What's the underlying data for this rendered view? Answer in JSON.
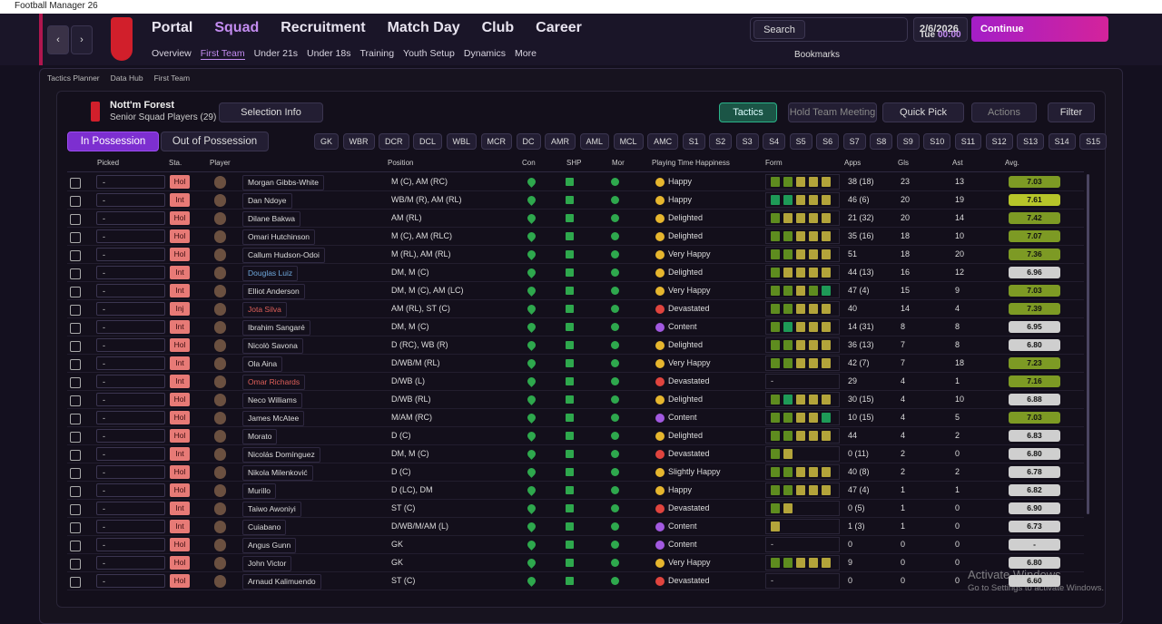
{
  "window": {
    "title": "Football Manager 26"
  },
  "nav": {
    "main": [
      "Portal",
      "Squad",
      "Recruitment",
      "Match Day",
      "Club",
      "Career"
    ],
    "active": 1,
    "sub": [
      "Overview",
      "First Team",
      "Under 21s",
      "Under 18s",
      "Training",
      "Youth Setup",
      "Dynamics",
      "More"
    ],
    "sub_active": 1
  },
  "toolbar": {
    "search": "Search",
    "date": "2/6/2026",
    "day": "Tue",
    "time": "00:00",
    "continue": "Continue",
    "bookmarks": "Bookmarks"
  },
  "breadcrumb": [
    "Tactics Planner",
    "Data Hub",
    "First Team"
  ],
  "team": {
    "name": "Nott'm Forest",
    "subtitle": "Senior Squad Players (29)"
  },
  "buttons": {
    "selection_info": "Selection Info",
    "tactics": "Tactics",
    "meeting": "Hold Team Meeting",
    "quick_pick": "Quick Pick",
    "actions": "Actions",
    "filter": "Filter",
    "in_possession": "In Possession",
    "out_possession": "Out of Possession"
  },
  "positions": [
    "GK",
    "WBR",
    "DCR",
    "DCL",
    "WBL",
    "MCR",
    "DC",
    "AMR",
    "AML",
    "MCL",
    "AMC",
    "S1",
    "S2",
    "S3",
    "S4",
    "S5",
    "S6",
    "S7",
    "S8",
    "S9",
    "S10",
    "S11",
    "S12",
    "S13",
    "S14",
    "S15"
  ],
  "table": {
    "columns": [
      "Picked",
      "Sta.",
      "Player",
      "Position",
      "Con",
      "SHP",
      "Mor",
      "Playing Time Happiness",
      "Form",
      "Apps",
      "Gls",
      "Ast",
      "Avg."
    ],
    "rows": [
      {
        "picked": "-",
        "status": "Hol",
        "player": "Morgan Gibbs-White",
        "position": "M (C), AM (RC)",
        "happiness": "Happy",
        "happiness_color": "#e6b62e",
        "form": [
          "#5e8c1f",
          "#5e8c1f",
          "#b3a43a",
          "#b3a43a",
          "#b3a43a"
        ],
        "apps": "38 (18)",
        "gls": "23",
        "ast": "13",
        "avg": "7.03"
      },
      {
        "picked": "-",
        "status": "Int",
        "player": "Dan Ndoye",
        "position": "WB/M (R), AM (RL)",
        "happiness": "Happy",
        "happiness_color": "#e6b62e",
        "form": [
          "#1e9a57",
          "#1e9a57",
          "#b3a43a",
          "#b3a43a",
          "#b3a43a"
        ],
        "apps": "46 (6)",
        "gls": "20",
        "ast": "19",
        "avg": "7.61"
      },
      {
        "picked": "-",
        "status": "Hol",
        "player": "Dilane Bakwa",
        "position": "AM (RL)",
        "happiness": "Delighted",
        "happiness_color": "#e6b62e",
        "form": [
          "#5e8c1f",
          "#b3a43a",
          "#b3a43a",
          "#b3a43a",
          "#b3a43a"
        ],
        "apps": "21 (32)",
        "gls": "20",
        "ast": "14",
        "avg": "7.42"
      },
      {
        "picked": "-",
        "status": "Hol",
        "player": "Omari Hutchinson",
        "position": "M (C), AM (RLC)",
        "happiness": "Delighted",
        "happiness_color": "#e6b62e",
        "form": [
          "#5e8c1f",
          "#5e8c1f",
          "#b3a43a",
          "#b3a43a",
          "#b3a43a"
        ],
        "apps": "35 (16)",
        "gls": "18",
        "ast": "10",
        "avg": "7.07"
      },
      {
        "picked": "-",
        "status": "Hol",
        "player": "Callum Hudson-Odoi",
        "position": "M (RL), AM (RL)",
        "happiness": "Very Happy",
        "happiness_color": "#e6b62e",
        "form": [
          "#5e8c1f",
          "#5e8c1f",
          "#b3a43a",
          "#b3a43a",
          "#b3a43a"
        ],
        "apps": "51",
        "gls": "18",
        "ast": "20",
        "avg": "7.36"
      },
      {
        "picked": "-",
        "status": "Int",
        "player": "Douglas Luiz",
        "name_color": "#6fa8dc",
        "position": "DM, M (C)",
        "happiness": "Delighted",
        "happiness_color": "#e6b62e",
        "form": [
          "#5e8c1f",
          "#b3a43a",
          "#b3a43a",
          "#b3a43a",
          "#b3a43a"
        ],
        "apps": "44 (13)",
        "gls": "16",
        "ast": "12",
        "avg": "6.96"
      },
      {
        "picked": "-",
        "status": "Int",
        "player": "Elliot Anderson",
        "position": "DM, M (C), AM (LC)",
        "happiness": "Very Happy",
        "happiness_color": "#e6b62e",
        "form": [
          "#5e8c1f",
          "#5e8c1f",
          "#b3a43a",
          "#5e8c1f",
          "#1e9a57"
        ],
        "apps": "47 (4)",
        "gls": "15",
        "ast": "9",
        "avg": "7.03"
      },
      {
        "picked": "-",
        "status": "Inj",
        "player": "Jota Silva",
        "name_color": "#e0605a",
        "position": "AM (RL), ST (C)",
        "happiness": "Devastated",
        "happiness_color": "#e0443e",
        "form": [
          "#5e8c1f",
          "#5e8c1f",
          "#b3a43a",
          "#b3a43a",
          "#b3a43a"
        ],
        "apps": "40",
        "gls": "14",
        "ast": "4",
        "avg": "7.39"
      },
      {
        "picked": "-",
        "status": "Int",
        "player": "Ibrahim Sangaré",
        "position": "DM, M (C)",
        "happiness": "Content",
        "happiness_color": "#a259e0",
        "form": [
          "#5e8c1f",
          "#1e9a57",
          "#b3a43a",
          "#b3a43a",
          "#b3a43a"
        ],
        "apps": "14 (31)",
        "gls": "8",
        "ast": "8",
        "avg": "6.95"
      },
      {
        "picked": "-",
        "status": "Hol",
        "player": "Nicolò Savona",
        "position": "D (RC), WB (R)",
        "happiness": "Delighted",
        "happiness_color": "#e6b62e",
        "form": [
          "#5e8c1f",
          "#5e8c1f",
          "#b3a43a",
          "#b3a43a",
          "#b3a43a"
        ],
        "apps": "36 (13)",
        "gls": "7",
        "ast": "8",
        "avg": "6.80"
      },
      {
        "picked": "-",
        "status": "Int",
        "player": "Ola Aina",
        "position": "D/WB/M (RL)",
        "happiness": "Very Happy",
        "happiness_color": "#e6b62e",
        "form": [
          "#5e8c1f",
          "#5e8c1f",
          "#b3a43a",
          "#b3a43a",
          "#b3a43a"
        ],
        "apps": "42 (7)",
        "gls": "7",
        "ast": "18",
        "avg": "7.23"
      },
      {
        "picked": "-",
        "status": "Int",
        "player": "Omar Richards",
        "name_color": "#e0605a",
        "position": "D/WB (L)",
        "happiness": "Devastated",
        "happiness_color": "#e0443e",
        "form": "-",
        "apps": "29",
        "gls": "4",
        "ast": "1",
        "avg": "7.16"
      },
      {
        "picked": "-",
        "status": "Hol",
        "player": "Neco Williams",
        "position": "D/WB (RL)",
        "happiness": "Delighted",
        "happiness_color": "#e6b62e",
        "form": [
          "#5e8c1f",
          "#1e9a57",
          "#b3a43a",
          "#b3a43a",
          "#b3a43a"
        ],
        "apps": "30 (15)",
        "gls": "4",
        "ast": "10",
        "avg": "6.88"
      },
      {
        "picked": "-",
        "status": "Hol",
        "player": "James McAtee",
        "position": "M/AM (RC)",
        "happiness": "Content",
        "happiness_color": "#a259e0",
        "form": [
          "#5e8c1f",
          "#5e8c1f",
          "#b3a43a",
          "#b3a43a",
          "#1e9a57"
        ],
        "apps": "10 (15)",
        "gls": "4",
        "ast": "5",
        "avg": "7.03"
      },
      {
        "picked": "-",
        "status": "Hol",
        "player": "Morato",
        "position": "D (C)",
        "happiness": "Delighted",
        "happiness_color": "#e6b62e",
        "form": [
          "#5e8c1f",
          "#5e8c1f",
          "#b3a43a",
          "#b3a43a",
          "#b3a43a"
        ],
        "apps": "44",
        "gls": "4",
        "ast": "2",
        "avg": "6.83"
      },
      {
        "picked": "-",
        "status": "Int",
        "player": "Nicolás Domínguez",
        "position": "DM, M (C)",
        "happiness": "Devastated",
        "happiness_color": "#e0443e",
        "form": [
          "#5e8c1f",
          "#b3a43a"
        ],
        "apps": "0 (11)",
        "gls": "2",
        "ast": "0",
        "avg": "6.80"
      },
      {
        "picked": "-",
        "status": "Hol",
        "player": "Nikola Milenković",
        "position": "D (C)",
        "happiness": "Slightly Happy",
        "happiness_color": "#e6b62e",
        "form": [
          "#5e8c1f",
          "#5e8c1f",
          "#b3a43a",
          "#b3a43a",
          "#b3a43a"
        ],
        "apps": "40 (8)",
        "gls": "2",
        "ast": "2",
        "avg": "6.78"
      },
      {
        "picked": "-",
        "status": "Hol",
        "player": "Murillo",
        "position": "D (LC), DM",
        "happiness": "Happy",
        "happiness_color": "#e6b62e",
        "form": [
          "#5e8c1f",
          "#5e8c1f",
          "#b3a43a",
          "#b3a43a",
          "#b3a43a"
        ],
        "apps": "47 (4)",
        "gls": "1",
        "ast": "1",
        "avg": "6.82"
      },
      {
        "picked": "-",
        "status": "Int",
        "player": "Taiwo Awoniyi",
        "position": "ST (C)",
        "happiness": "Devastated",
        "happiness_color": "#e0443e",
        "form": [
          "#5e8c1f",
          "#b3a43a"
        ],
        "apps": "0 (5)",
        "gls": "1",
        "ast": "0",
        "avg": "6.90"
      },
      {
        "picked": "-",
        "status": "Int",
        "player": "Cuiabano",
        "position": "D/WB/M/AM (L)",
        "happiness": "Content",
        "happiness_color": "#a259e0",
        "form": [
          "#b3a43a"
        ],
        "apps": "1 (3)",
        "gls": "1",
        "ast": "0",
        "avg": "6.73"
      },
      {
        "picked": "-",
        "status": "Hol",
        "player": "Angus Gunn",
        "position": "GK",
        "happiness": "Content",
        "happiness_color": "#a259e0",
        "form": "-",
        "apps": "0",
        "gls": "0",
        "ast": "0",
        "avg": "-"
      },
      {
        "picked": "-",
        "status": "Hol",
        "player": "John Victor",
        "position": "GK",
        "happiness": "Very Happy",
        "happiness_color": "#e6b62e",
        "form": [
          "#5e8c1f",
          "#5e8c1f",
          "#b3a43a",
          "#b3a43a",
          "#b3a43a"
        ],
        "apps": "9",
        "gls": "0",
        "ast": "0",
        "avg": "6.80"
      },
      {
        "picked": "-",
        "status": "Hol",
        "player": "Arnaud Kalimuendo",
        "position": "ST (C)",
        "happiness": "Devastated",
        "happiness_color": "#e0443e",
        "form": "-",
        "apps": "0",
        "gls": "0",
        "ast": "0",
        "avg": "6.60"
      }
    ]
  },
  "watermark": {
    "title": "Activate Windows",
    "text": "Go to Settings to activate Windows."
  }
}
